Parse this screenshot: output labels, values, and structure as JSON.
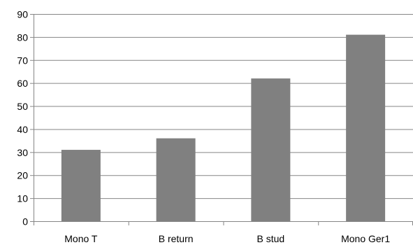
{
  "chart_data": {
    "type": "bar",
    "categories": [
      "Mono T",
      "B return",
      "B stud",
      "Mono Ger1"
    ],
    "values": [
      31,
      36,
      62,
      81
    ],
    "title": "",
    "xlabel": "",
    "ylabel": "",
    "ylim": [
      0,
      90
    ],
    "yticks": [
      0,
      10,
      20,
      30,
      40,
      50,
      60,
      70,
      80,
      90
    ],
    "grid": true,
    "legend": "none",
    "bar_color": "#808080",
    "grid_color": "#868686",
    "axis_color": "#868686"
  }
}
